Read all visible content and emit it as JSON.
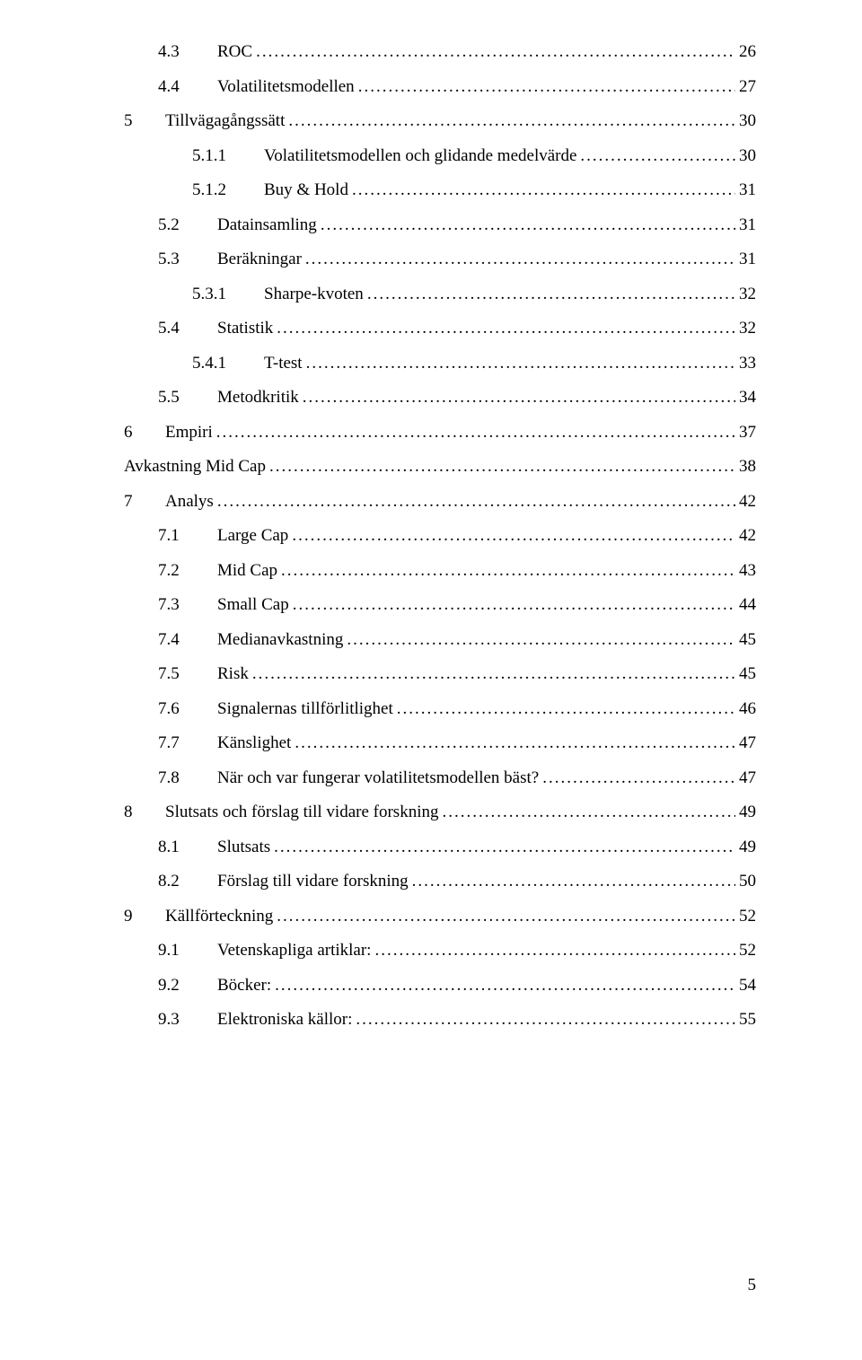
{
  "toc": [
    {
      "level": 1,
      "num": "4.3",
      "title": "ROC",
      "page": "26"
    },
    {
      "level": 1,
      "num": "4.4",
      "title": "Volatilitetsmodellen",
      "page": "27"
    },
    {
      "level": 0,
      "num": "5",
      "title": "Tillvägagångssätt",
      "page": "30"
    },
    {
      "level": 2,
      "num": "5.1.1",
      "title": "Volatilitetsmodellen och glidande medelvärde",
      "page": "30"
    },
    {
      "level": 2,
      "num": "5.1.2",
      "title": "Buy & Hold",
      "page": "31"
    },
    {
      "level": 1,
      "num": "5.2",
      "title": "Datainsamling",
      "page": "31"
    },
    {
      "level": 1,
      "num": "5.3",
      "title": "Beräkningar",
      "page": "31"
    },
    {
      "level": 2,
      "num": "5.3.1",
      "title": "Sharpe-kvoten",
      "page": "32"
    },
    {
      "level": 1,
      "num": "5.4",
      "title": "Statistik",
      "page": "32"
    },
    {
      "level": 2,
      "num": "5.4.1",
      "title": "T-test",
      "page": "33"
    },
    {
      "level": 1,
      "num": "5.5",
      "title": "Metodkritik",
      "page": "34"
    },
    {
      "level": 0,
      "num": "6",
      "title": "Empiri",
      "page": "37"
    },
    {
      "level": -1,
      "num": "",
      "title": "Avkastning Mid Cap",
      "page": "38"
    },
    {
      "level": 0,
      "num": "7",
      "title": "Analys",
      "page": "42"
    },
    {
      "level": 1,
      "num": "7.1",
      "title": "Large Cap",
      "page": "42"
    },
    {
      "level": 1,
      "num": "7.2",
      "title": "Mid Cap",
      "page": "43"
    },
    {
      "level": 1,
      "num": "7.3",
      "title": "Small Cap",
      "page": "44"
    },
    {
      "level": 1,
      "num": "7.4",
      "title": "Medianavkastning",
      "page": "45"
    },
    {
      "level": 1,
      "num": "7.5",
      "title": "Risk",
      "page": "45"
    },
    {
      "level": 1,
      "num": "7.6",
      "title": "Signalernas tillförlitlighet",
      "page": "46"
    },
    {
      "level": 1,
      "num": "7.7",
      "title": "Känslighet",
      "page": "47"
    },
    {
      "level": 1,
      "num": "7.8",
      "title": "När och var fungerar volatilitetsmodellen bäst?",
      "page": "47"
    },
    {
      "level": 0,
      "num": "8",
      "title": "Slutsats och förslag till vidare forskning",
      "page": "49"
    },
    {
      "level": 1,
      "num": "8.1",
      "title": "Slutsats",
      "page": "49"
    },
    {
      "level": 1,
      "num": "8.2",
      "title": "Förslag till vidare forskning",
      "page": "50"
    },
    {
      "level": 0,
      "num": "9",
      "title": "Källförteckning",
      "page": "52"
    },
    {
      "level": 1,
      "num": "9.1",
      "title": "Vetenskapliga artiklar:",
      "page": "52"
    },
    {
      "level": 1,
      "num": "9.2",
      "title": "Böcker:",
      "page": "54"
    },
    {
      "level": 1,
      "num": "9.3",
      "title": "Elektroniska källor:",
      "page": "55"
    }
  ],
  "page_number": "5",
  "style": {
    "font_family": "Times New Roman",
    "font_size_pt": 12,
    "text_color": "#000000",
    "background_color": "#ffffff"
  }
}
